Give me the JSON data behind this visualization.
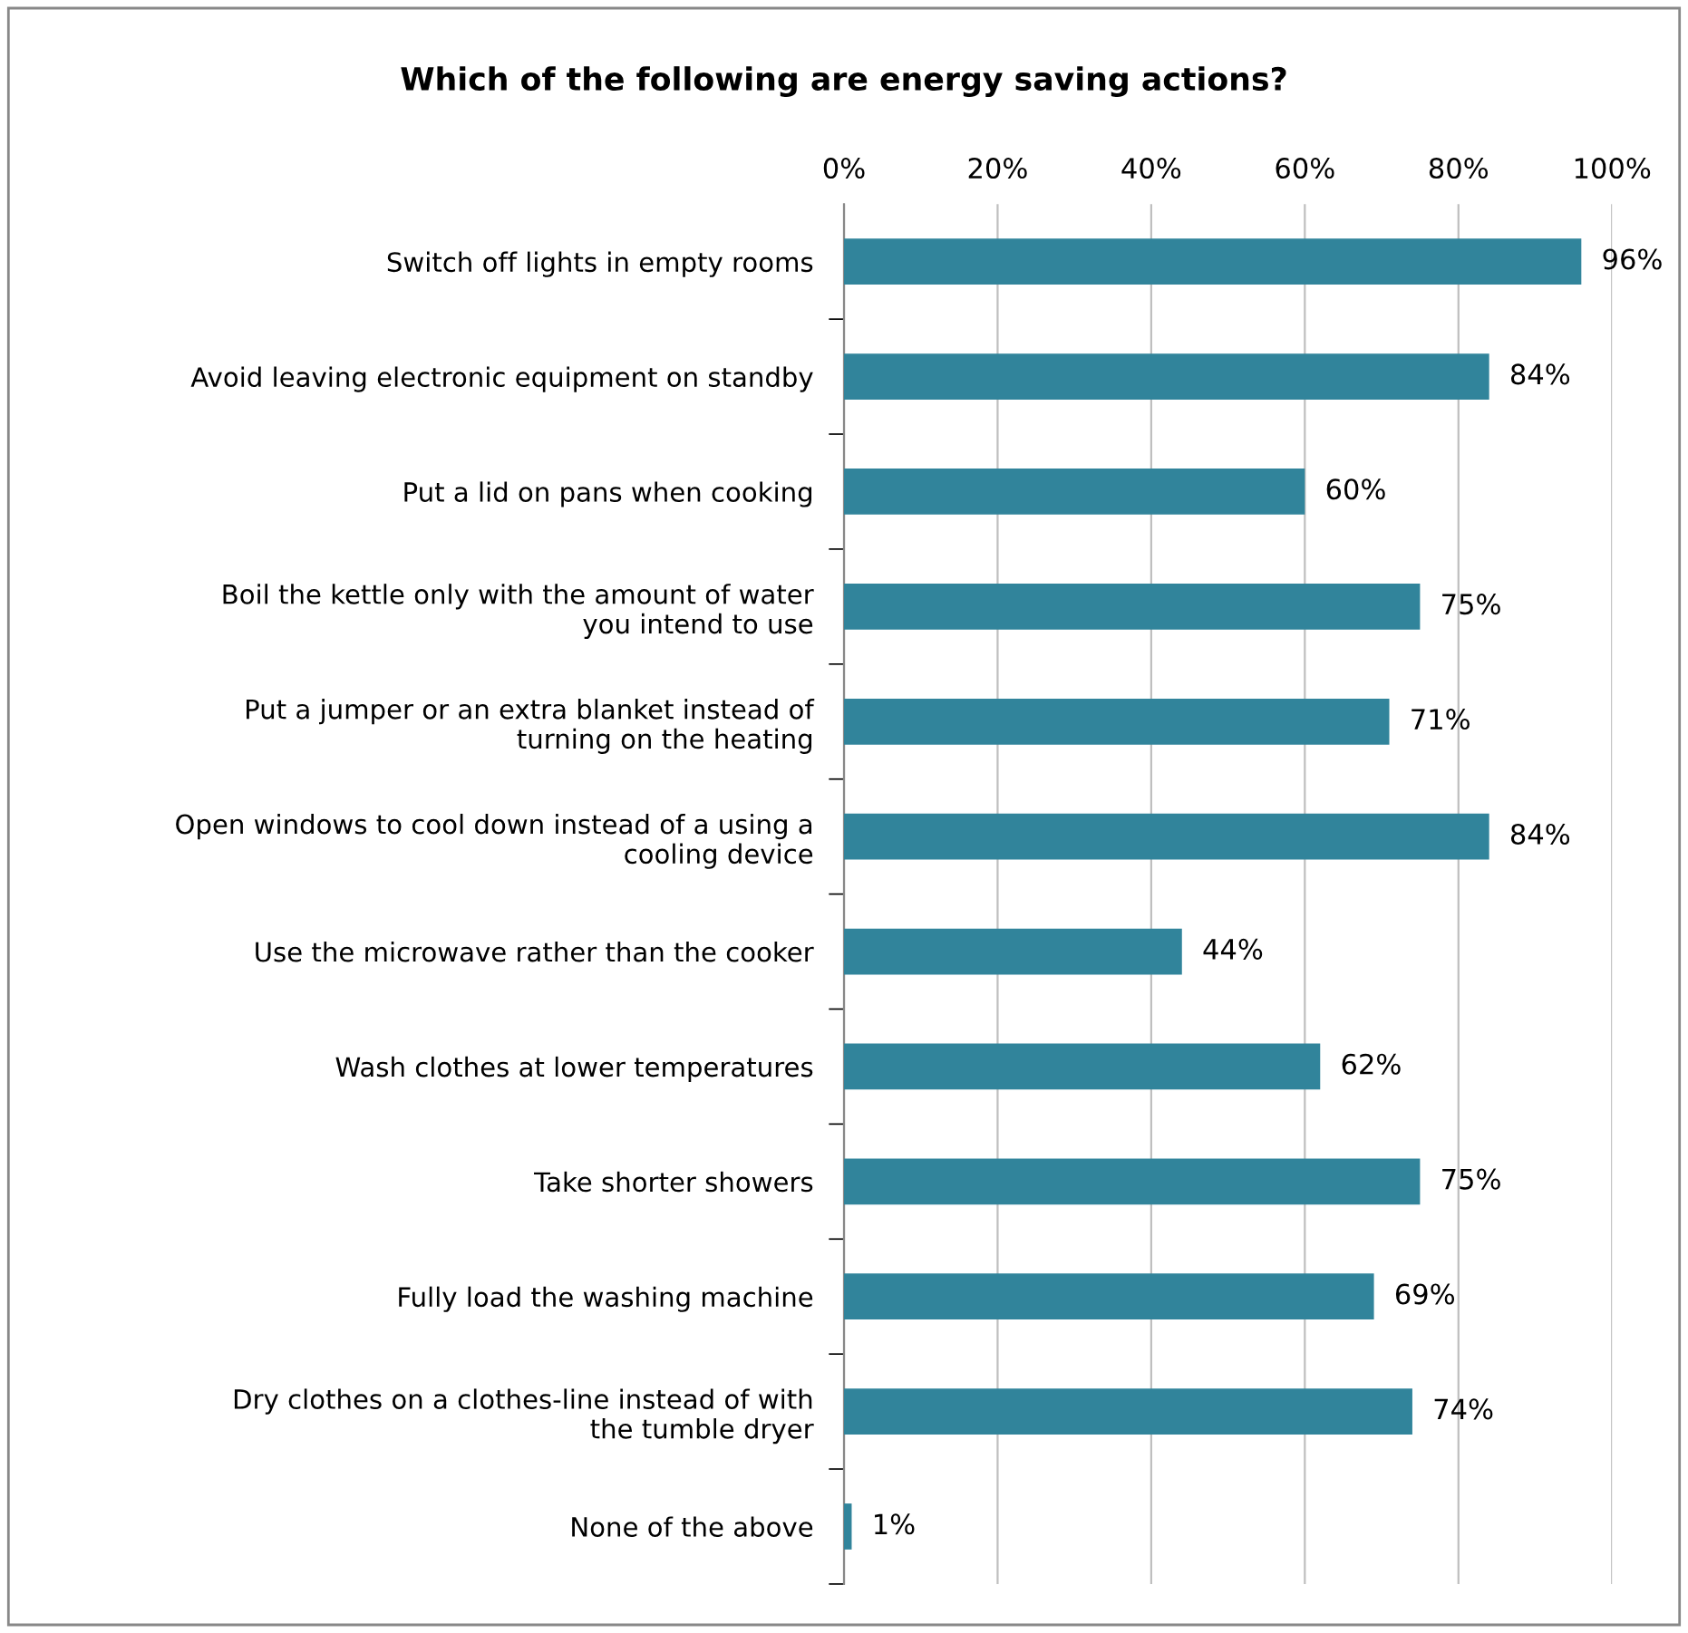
{
  "chart_data": {
    "type": "bar",
    "orientation": "horizontal",
    "title": "Which of the following are energy saving actions?",
    "categories": [
      "Switch off lights in empty rooms",
      "Avoid leaving electronic equipment on standby",
      "Put a lid on pans when cooking",
      "Boil the kettle only with the amount of water you intend to use",
      "Put a jumper or an extra blanket instead of turning on the heating",
      "Open windows to cool down instead of a using a cooling device",
      "Use the microwave rather than the cooker",
      "Wash clothes at lower temperatures",
      "Take shorter showers",
      "Fully load the washing machine",
      "Dry clothes on a clothes-line instead of with the tumble dryer",
      "None of the above"
    ],
    "values": [
      96,
      84,
      60,
      75,
      71,
      84,
      44,
      62,
      75,
      69,
      74,
      1
    ],
    "value_labels": [
      "96%",
      "84%",
      "60%",
      "75%",
      "71%",
      "84%",
      "44%",
      "62%",
      "75%",
      "69%",
      "74%",
      "1%"
    ],
    "color": "#31849b",
    "xlim": [
      0,
      100
    ],
    "xticks": [
      {
        "value": 0,
        "label": "0%"
      },
      {
        "value": 20,
        "label": "20%"
      },
      {
        "value": 40,
        "label": "40%"
      },
      {
        "value": 60,
        "label": "60%"
      },
      {
        "value": 80,
        "label": "80%"
      },
      {
        "value": 100,
        "label": "100%"
      }
    ],
    "grid": "x",
    "legend": false
  }
}
